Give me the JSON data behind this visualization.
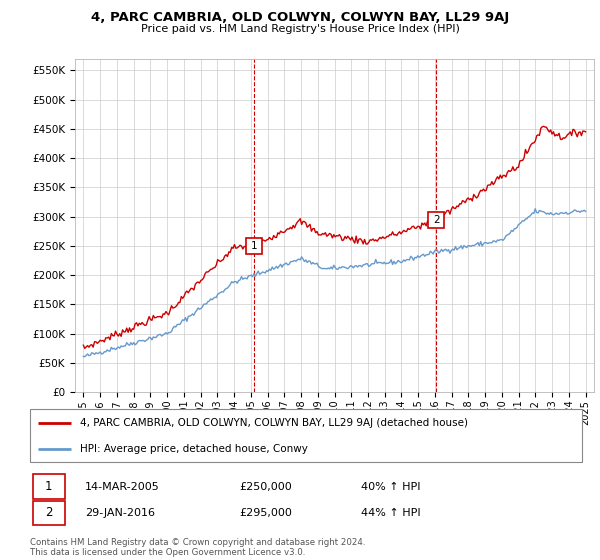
{
  "title": "4, PARC CAMBRIA, OLD COLWYN, COLWYN BAY, LL29 9AJ",
  "subtitle": "Price paid vs. HM Land Registry's House Price Index (HPI)",
  "ylabel_ticks": [
    "£0",
    "£50K",
    "£100K",
    "£150K",
    "£200K",
    "£250K",
    "£300K",
    "£350K",
    "£400K",
    "£450K",
    "£500K",
    "£550K"
  ],
  "ytick_values": [
    0,
    50000,
    100000,
    150000,
    200000,
    250000,
    300000,
    350000,
    400000,
    450000,
    500000,
    550000
  ],
  "ylim": [
    0,
    570000
  ],
  "xlim_start": 1994.5,
  "xlim_end": 2025.5,
  "xticks": [
    1995,
    1996,
    1997,
    1998,
    1999,
    2000,
    2001,
    2002,
    2003,
    2004,
    2005,
    2006,
    2007,
    2008,
    2009,
    2010,
    2011,
    2012,
    2013,
    2014,
    2015,
    2016,
    2017,
    2018,
    2019,
    2020,
    2021,
    2022,
    2023,
    2024,
    2025
  ],
  "red_line_label": "4, PARC CAMBRIA, OLD COLWYN, COLWYN BAY, LL29 9AJ (detached house)",
  "blue_line_label": "HPI: Average price, detached house, Conwy",
  "sale1_label": "1",
  "sale1_date": "14-MAR-2005",
  "sale1_price": "£250,000",
  "sale1_hpi": "40% ↑ HPI",
  "sale1_x": 2005.2,
  "sale1_y": 250000,
  "sale2_label": "2",
  "sale2_date": "29-JAN-2016",
  "sale2_price": "£295,000",
  "sale2_hpi": "44% ↑ HPI",
  "sale2_x": 2016.08,
  "sale2_y": 295000,
  "vline1_x": 2005.2,
  "vline2_x": 2016.08,
  "footer": "Contains HM Land Registry data © Crown copyright and database right 2024.\nThis data is licensed under the Open Government Licence v3.0.",
  "red_color": "#cc0000",
  "blue_color": "#6699cc",
  "vline_color": "#cc0000",
  "grid_color": "#cccccc",
  "background_color": "#ffffff"
}
